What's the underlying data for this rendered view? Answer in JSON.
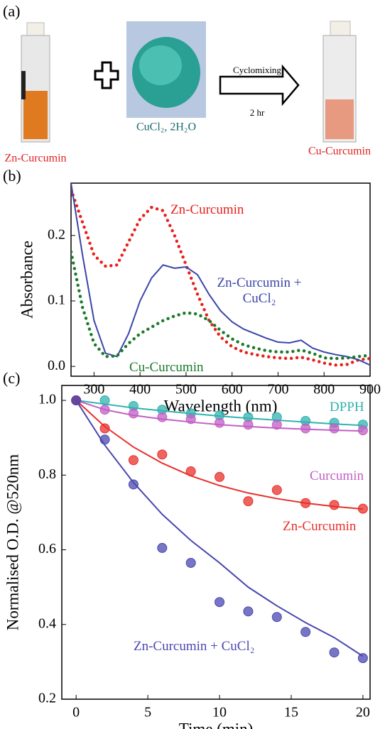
{
  "panel_a": {
    "label": "(a)",
    "left_label": "Zn-Curcumin",
    "reagent_label": "CuCl₂, 2H₂O",
    "arrow_top": "Cyclomixing",
    "arrow_bottom": "2 hr",
    "right_label": "Cu-Curcumin"
  },
  "chart_data": [
    {
      "type": "line",
      "panel_label": "(b)",
      "x_label": "Wavelength (nm)",
      "y_label": "Absorbance",
      "x": [
        250,
        275,
        300,
        325,
        350,
        375,
        400,
        425,
        450,
        475,
        500,
        525,
        550,
        575,
        600,
        625,
        650,
        675,
        700,
        725,
        750,
        775,
        800,
        825,
        850,
        875,
        900
      ],
      "series": [
        {
          "name": "Zn-Curcumin",
          "color": "#e8201c",
          "style": "dotted",
          "values": [
            0.27,
            0.22,
            0.17,
            0.153,
            0.155,
            0.19,
            0.225,
            0.243,
            0.238,
            0.2,
            0.155,
            0.11,
            0.07,
            0.045,
            0.03,
            0.022,
            0.018,
            0.015,
            0.013,
            0.012,
            0.014,
            0.01,
            0.005,
            0.002,
            0.003,
            0.01,
            0.012
          ]
        },
        {
          "name": "Zn-Curcumin + CuCl₂",
          "color": "#3a45a8",
          "style": "solid",
          "values": [
            0.28,
            0.17,
            0.07,
            0.02,
            0.015,
            0.05,
            0.1,
            0.135,
            0.155,
            0.15,
            0.152,
            0.14,
            0.11,
            0.085,
            0.068,
            0.057,
            0.05,
            0.043,
            0.037,
            0.036,
            0.04,
            0.028,
            0.022,
            0.018,
            0.015,
            0.01,
            0.002
          ]
        },
        {
          "name": "Cu-Curcumin",
          "color": "#1a7a2a",
          "style": "dotted",
          "values": [
            0.175,
            0.09,
            0.035,
            0.015,
            0.016,
            0.035,
            0.05,
            0.06,
            0.07,
            0.077,
            0.082,
            0.08,
            0.07,
            0.055,
            0.042,
            0.033,
            0.028,
            0.024,
            0.022,
            0.022,
            0.025,
            0.02,
            0.013,
            0.012,
            0.013,
            0.015,
            0.017
          ]
        }
      ],
      "xlim": [
        250,
        900
      ],
      "xticks": [
        300,
        400,
        500,
        600,
        700,
        800,
        900
      ],
      "ylim": [
        -0.015,
        0.28
      ],
      "yticks": [
        {
          "value": 0,
          "label": "0.0"
        },
        0.1,
        0.2
      ]
    },
    {
      "type": "scatter",
      "panel_label": "(c)",
      "x_label": "Time (min)",
      "y_label": "Normalised O.D. @520nm",
      "x": [
        0,
        2,
        4,
        6,
        8,
        10,
        12,
        14,
        16,
        18,
        20
      ],
      "series": [
        {
          "name": "DPPH",
          "color": "#2fb3ad",
          "values": [
            1.0,
            1.0,
            0.985,
            0.975,
            0.965,
            0.96,
            0.955,
            0.955,
            0.945,
            0.94,
            0.935
          ],
          "fit": [
            1.0,
            0.99,
            0.98,
            0.972,
            0.965,
            0.958,
            0.952,
            0.947,
            0.942,
            0.937,
            0.933
          ]
        },
        {
          "name": "Curcumin",
          "color": "#c25ec6",
          "values": [
            1.0,
            0.975,
            0.965,
            0.955,
            0.95,
            0.94,
            0.935,
            0.935,
            0.925,
            0.925,
            0.92
          ],
          "fit": [
            1.0,
            0.975,
            0.96,
            0.95,
            0.942,
            0.935,
            0.93,
            0.926,
            0.923,
            0.92,
            0.918
          ]
        },
        {
          "name": "Zn-Curcumin",
          "color": "#e8302c",
          "values": [
            1.0,
            0.925,
            0.84,
            0.855,
            0.81,
            0.795,
            0.73,
            0.76,
            0.725,
            0.72,
            0.71
          ],
          "fit": [
            1.0,
            0.93,
            0.875,
            0.832,
            0.798,
            0.772,
            0.752,
            0.737,
            0.725,
            0.716,
            0.709
          ]
        },
        {
          "name": "Zn-Curcumin + CuCl₂",
          "color": "#4a48b0",
          "values": [
            1.0,
            0.895,
            0.775,
            0.605,
            0.565,
            0.46,
            0.435,
            0.42,
            0.38,
            0.325,
            0.31
          ],
          "fit": [
            1.0,
            0.88,
            0.78,
            0.695,
            0.625,
            0.565,
            0.5,
            0.45,
            0.405,
            0.365,
            0.315
          ]
        }
      ],
      "xlim": [
        -1,
        20.5
      ],
      "xticks": [
        0,
        5,
        10,
        15,
        20
      ],
      "ylim": [
        0.2,
        1.04
      ],
      "yticks": [
        0.2,
        0.4,
        0.6,
        0.8,
        {
          "value": 1,
          "label": "1.0"
        }
      ]
    }
  ]
}
